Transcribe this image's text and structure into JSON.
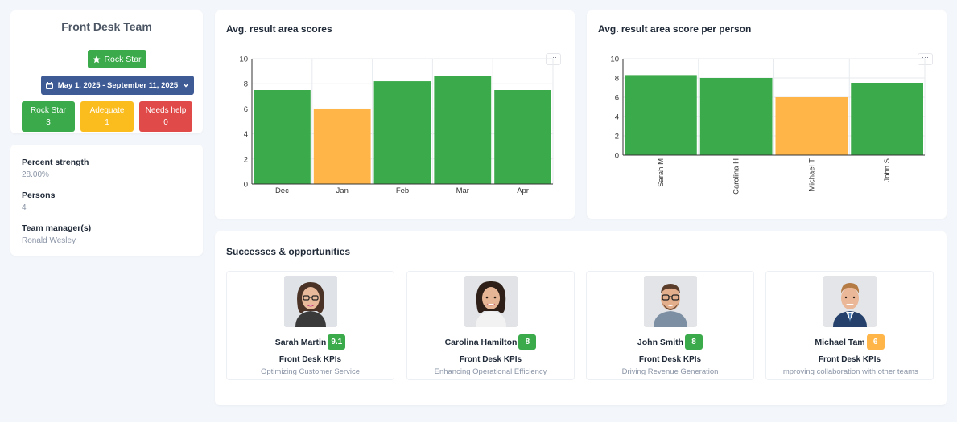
{
  "team": {
    "title": "Front Desk Team",
    "badge_label": "Rock Star",
    "date_range": "May 1, 2025 - September 11, 2025",
    "stats": [
      {
        "label": "Rock Star",
        "count": "3",
        "color": "#3aaa4a"
      },
      {
        "label": "Adequate",
        "count": "1",
        "color": "#fbbd1e"
      },
      {
        "label": "Needs help",
        "count": "0",
        "color": "#e04a48"
      }
    ]
  },
  "info": [
    {
      "label": "Percent strength",
      "value": "28.00%"
    },
    {
      "label": "Persons",
      "value": "4"
    },
    {
      "label": "Team manager(s)",
      "value": "Ronald Wesley"
    }
  ],
  "charts": {
    "more_label": "···"
  },
  "chart_data": [
    {
      "type": "bar",
      "title": "Avg. result area scores",
      "categories": [
        "Dec",
        "Jan",
        "Feb",
        "Mar",
        "Apr"
      ],
      "values": [
        7.5,
        6.0,
        8.2,
        8.6,
        7.5
      ],
      "colors": [
        "#3aaa4a",
        "#ffb547",
        "#3aaa4a",
        "#3aaa4a",
        "#3aaa4a"
      ],
      "ylim": [
        0,
        10
      ],
      "yticks": [
        0,
        2,
        4,
        6,
        8,
        10
      ],
      "grid": true,
      "legend": "none"
    },
    {
      "type": "bar",
      "title": "Avg. result area score per person",
      "categories": [
        "Sarah M",
        "Carolina H",
        "Michael T",
        "John S"
      ],
      "values": [
        8.3,
        8.0,
        6.0,
        7.5
      ],
      "colors": [
        "#3aaa4a",
        "#3aaa4a",
        "#ffb547",
        "#3aaa4a"
      ],
      "ylim": [
        0,
        10
      ],
      "yticks": [
        0,
        2,
        4,
        6,
        8,
        10
      ],
      "grid": true,
      "legend": "none"
    }
  ],
  "successes": {
    "title": "Successes & opportunities",
    "people": [
      {
        "name": "Sarah Martin",
        "score": "9.1",
        "score_color": "#3aaa4a",
        "kpi": "Front Desk KPIs",
        "desc": "Optimizing Customer Service",
        "avatar": "woman-glasses-avatar"
      },
      {
        "name": "Carolina Hamilton",
        "score": "8",
        "score_color": "#3aaa4a",
        "kpi": "Front Desk KPIs",
        "desc": "Enhancing Operational Efficiency",
        "avatar": "woman-avatar"
      },
      {
        "name": "John Smith",
        "score": "8",
        "score_color": "#3aaa4a",
        "kpi": "Front Desk KPIs",
        "desc": "Driving Revenue Generation",
        "avatar": "man-glasses-avatar"
      },
      {
        "name": "Michael Tam",
        "score": "6",
        "score_color": "#ffb547",
        "kpi": "Front Desk KPIs",
        "desc": "Improving collaboration with other teams",
        "avatar": "man-suit-avatar"
      }
    ]
  }
}
